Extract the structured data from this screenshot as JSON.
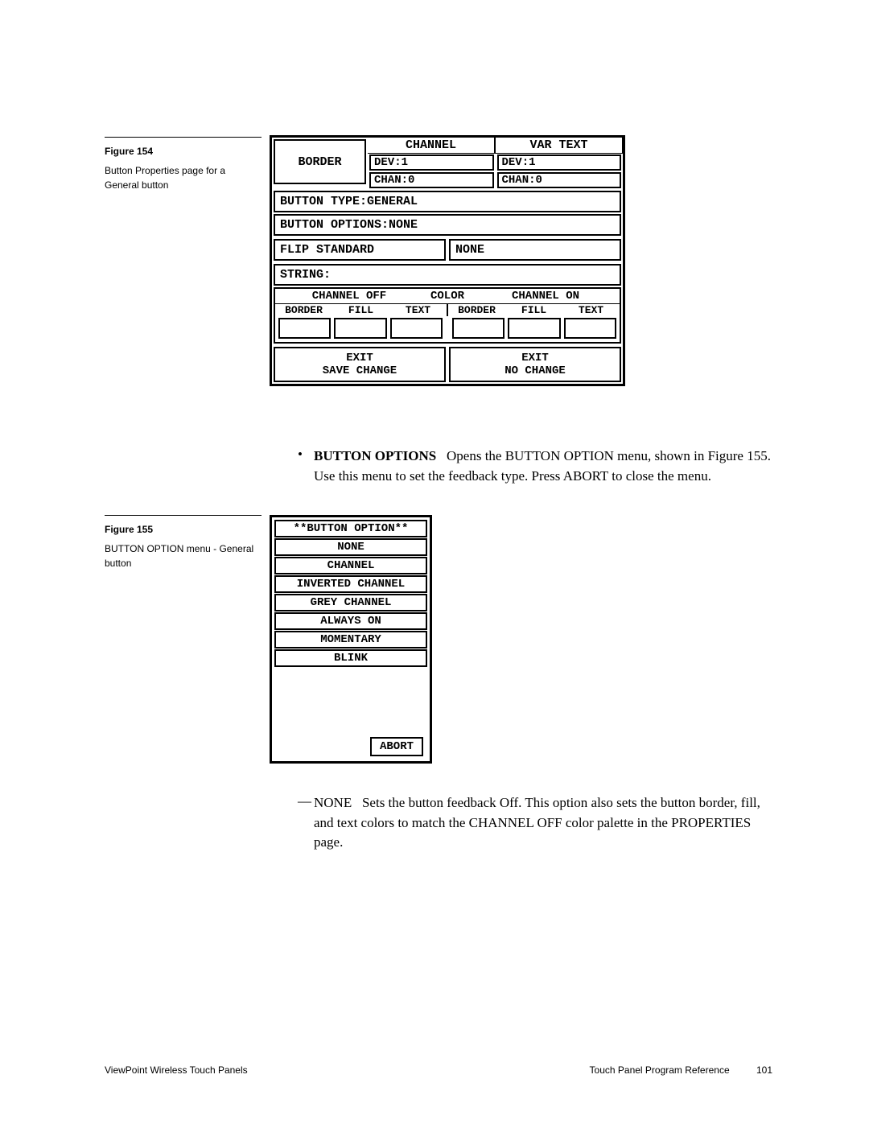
{
  "sidebar1": {
    "fig": "Figure 154",
    "desc": "Button Properties page for a General button"
  },
  "sidebar2": {
    "fig": "Figure 155",
    "desc": "BUTTON OPTION menu - General button"
  },
  "panel154": {
    "border": "BORDER",
    "channel_hdr": "CHANNEL",
    "vartext_hdr": "VAR TEXT",
    "dev1a": "DEV:1",
    "chan0a": "CHAN:0",
    "dev1b": "DEV:1",
    "chan0b": "CHAN:0",
    "btn_type": "BUTTON TYPE:GENERAL",
    "btn_opts": "BUTTON OPTIONS:NONE",
    "flip": "FLIP STANDARD",
    "flip_r": "NONE",
    "string": "STRING:",
    "ch_off": "CHANNEL OFF",
    "color": "COLOR",
    "ch_on": "CHANNEL ON",
    "border_l": "BORDER",
    "fill_l": "FILL",
    "text_l": "TEXT",
    "border_r": "BORDER",
    "fill_r": "FILL",
    "text_r": "TEXT",
    "exit_save_1": "EXIT",
    "exit_save_2": "SAVE CHANGE",
    "exit_no_1": "EXIT",
    "exit_no_2": "NO CHANGE"
  },
  "panel155": {
    "title": "**BUTTON OPTION**",
    "items": [
      "NONE",
      "CHANNEL",
      "INVERTED CHANNEL",
      "GREY CHANNEL",
      "ALWAYS ON",
      "MOMENTARY",
      "BLINK"
    ],
    "abort": "ABORT"
  },
  "body1": {
    "bold": "BUTTON OPTIONS",
    "rest": "   Opens the BUTTON OPTION menu, shown in Figure 155. Use this menu to set the feedback type. Press ABORT to close the menu."
  },
  "body2": {
    "lead": "NONE",
    "rest": "   Sets the button feedback Off. This option also sets the button border, fill, and text colors to match the CHANNEL OFF color palette in the PROPERTIES page."
  },
  "footer": {
    "left": "ViewPoint Wireless Touch Panels",
    "right": "Touch Panel Program Reference",
    "page": "101"
  }
}
